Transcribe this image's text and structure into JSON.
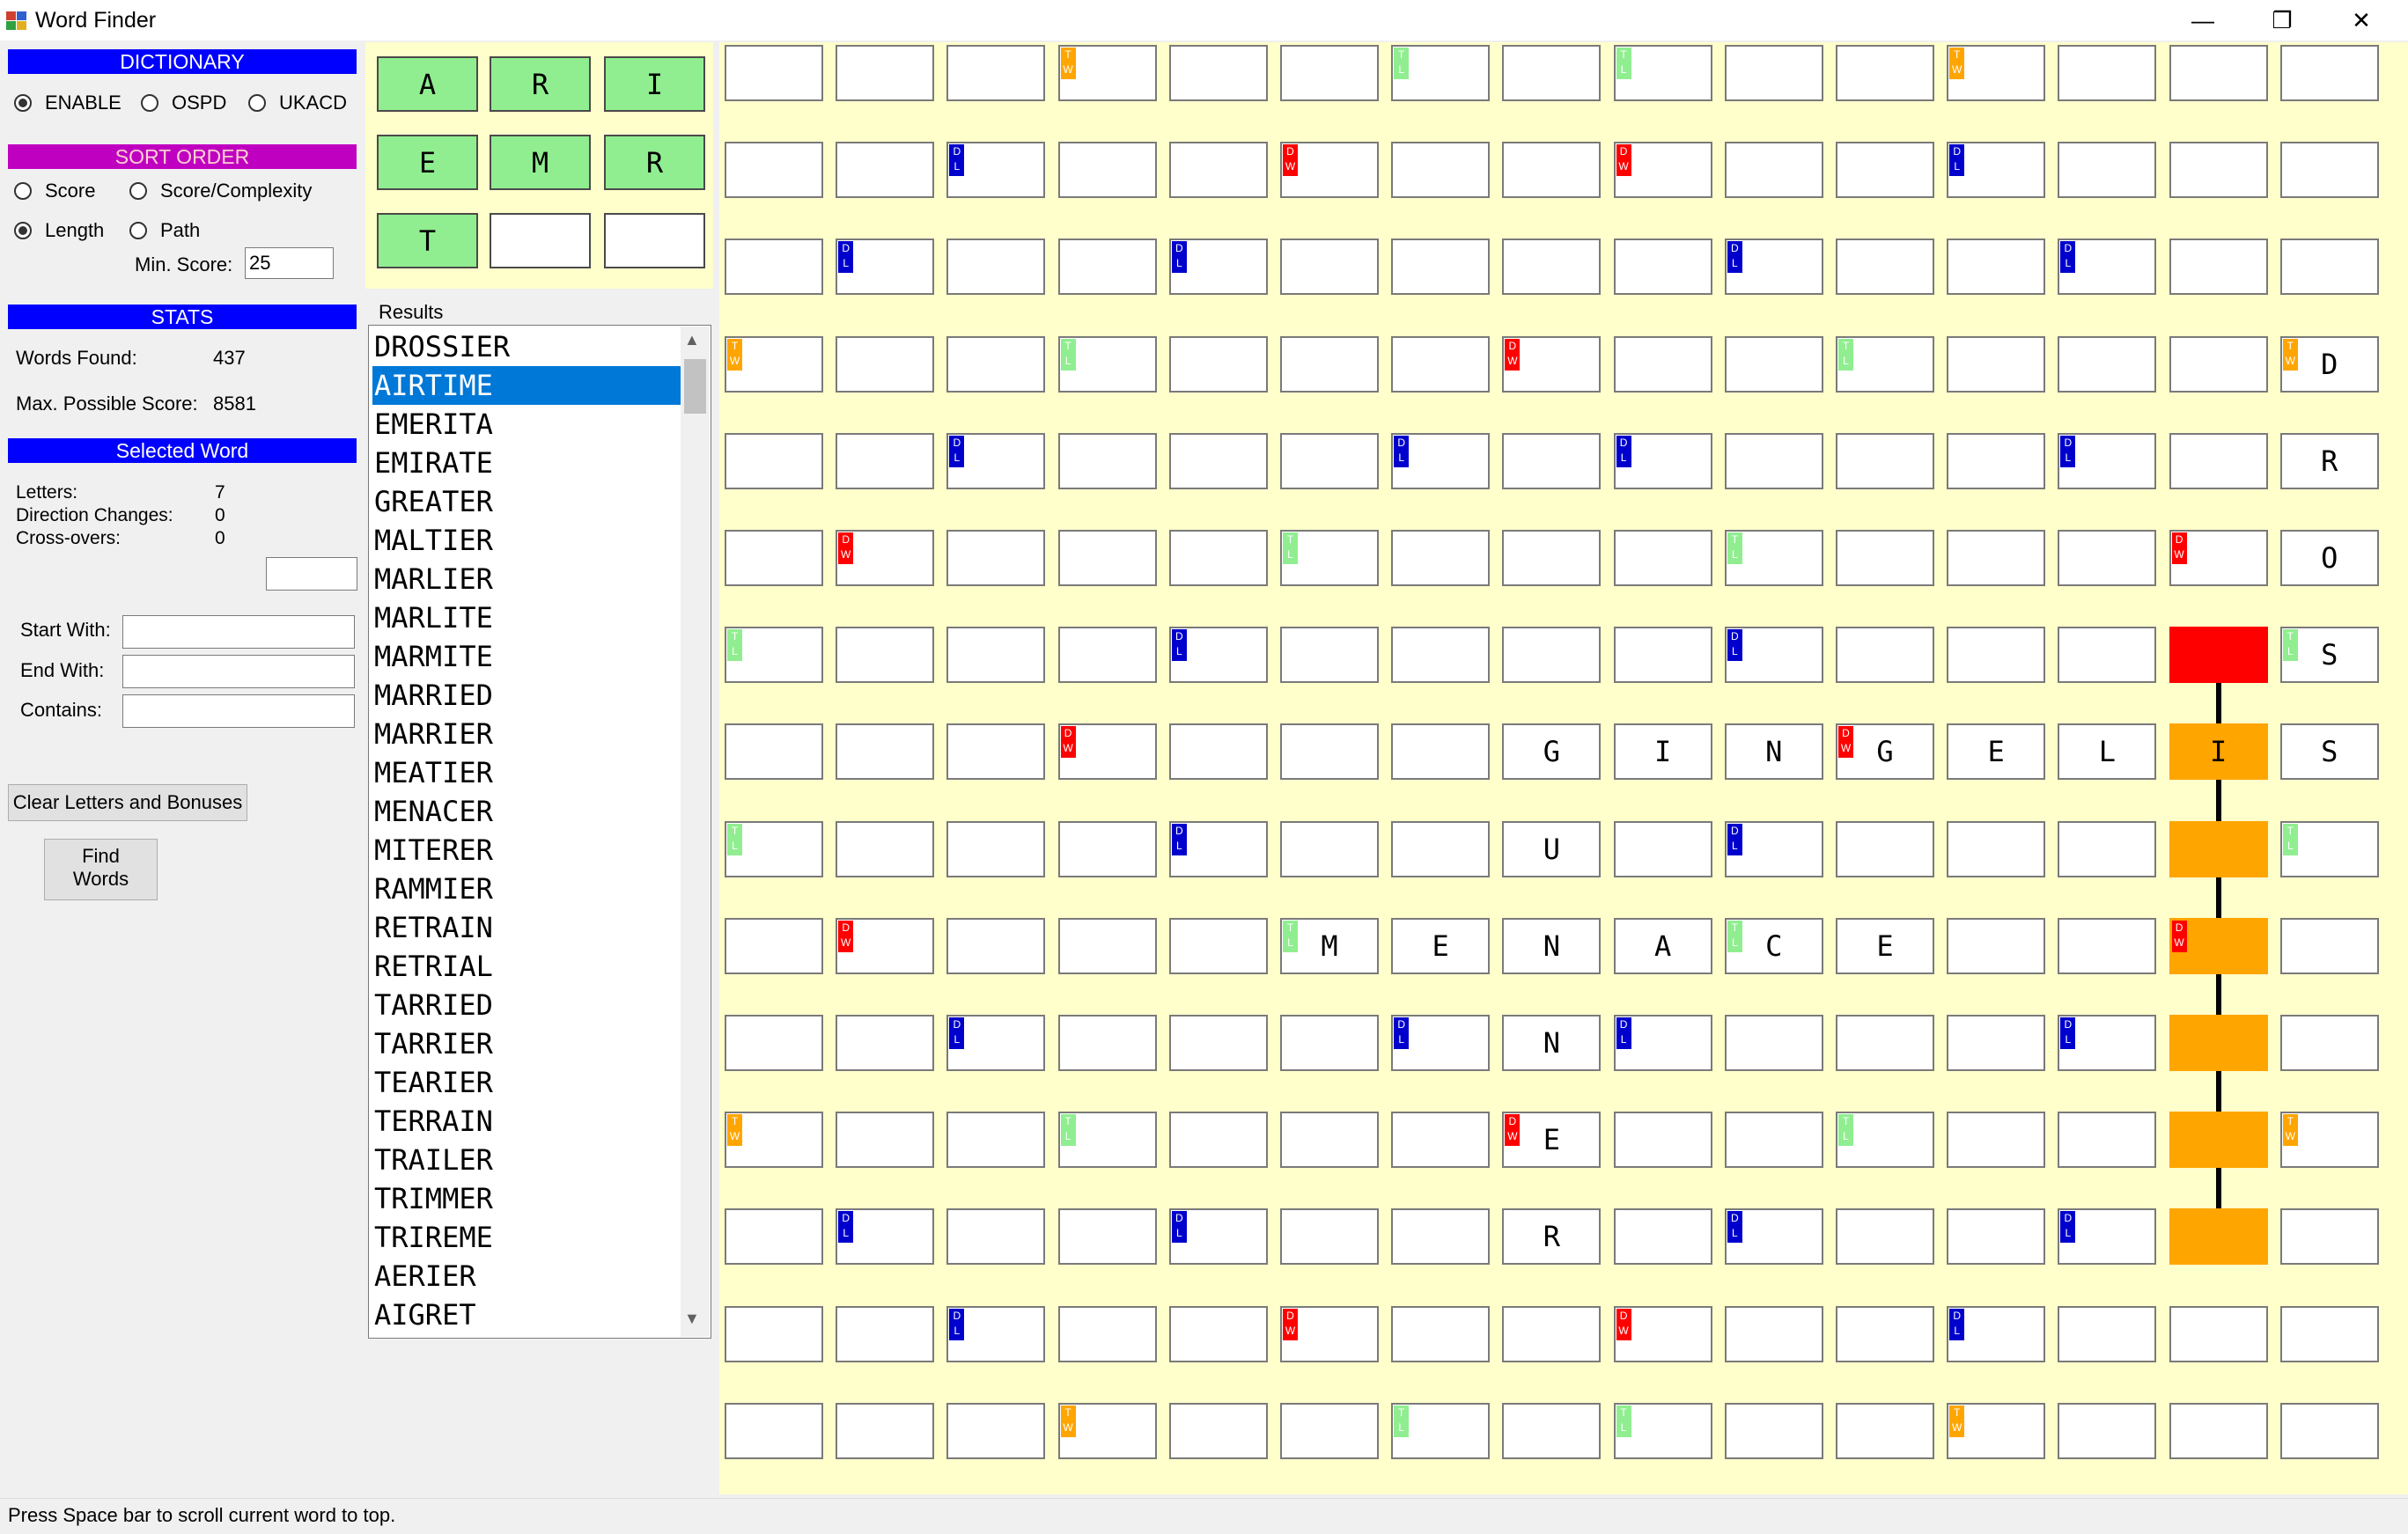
{
  "window": {
    "title": "Word Finder",
    "minimize": "—",
    "maximize": "❐",
    "close": "✕"
  },
  "dictionary": {
    "header": "DICTIONARY",
    "options": [
      "ENABLE",
      "OSPD",
      "UKACD"
    ],
    "selected": "ENABLE"
  },
  "sort_order": {
    "header": "SORT ORDER",
    "options": [
      "Score",
      "Score/Complexity",
      "Length",
      "Path"
    ],
    "selected": "Length",
    "min_score_label": "Min. Score:",
    "min_score_value": "25"
  },
  "stats": {
    "header": "STATS",
    "words_found_label": "Words Found:",
    "words_found": "437",
    "max_score_label": "Max. Possible Score:",
    "max_score": "8581"
  },
  "selected_word": {
    "header": "Selected Word",
    "letters_label": "Letters:",
    "letters": "7",
    "direction_label": "Direction Changes:",
    "direction": "0",
    "crossovers_label": "Cross-overs:",
    "crossovers": "0",
    "score_value": ""
  },
  "filters": {
    "start_label": "Start With:",
    "start_value": "",
    "end_label": "End With:",
    "end_value": "",
    "contains_label": "Contains:",
    "contains_value": ""
  },
  "buttons": {
    "clear": "Clear Letters and Bonuses",
    "find_line1": "Find",
    "find_line2": "Words"
  },
  "rack": [
    "A",
    "R",
    "I",
    "E",
    "M",
    "R",
    "T",
    "",
    ""
  ],
  "results": {
    "label": "Results",
    "selected_index": 1,
    "items": [
      "DROSSIER",
      "AIRTIME",
      "EMERITA",
      "EMIRATE",
      "GREATER",
      "MALTIER",
      "MARLIER",
      "MARLITE",
      "MARMITE",
      "MARRIED",
      "MARRIER",
      "MEATIER",
      "MENACER",
      "MITERER",
      "RAMMIER",
      "RETRAIN",
      "RETRIAL",
      "TARRIED",
      "TARRIER",
      "TEARIER",
      "TERRAIN",
      "TRAILER",
      "TRIMMER",
      "TRIREME",
      "AERIER",
      "AIGRET"
    ]
  },
  "board": {
    "bonuses": [
      [
        "",
        "",
        "",
        "TW",
        "",
        "",
        "TL",
        "",
        "TL",
        "",
        "",
        "TW",
        "",
        "",
        ""
      ],
      [
        "",
        "",
        "DL",
        "",
        "",
        "DW",
        "",
        "",
        "DW",
        "",
        "",
        "DL",
        "",
        "",
        ""
      ],
      [
        "",
        "DL",
        "",
        "",
        "DL",
        "",
        "",
        "",
        "",
        "DL",
        "",
        "",
        "DL",
        "",
        ""
      ],
      [
        "TW",
        "",
        "",
        "TL",
        "",
        "",
        "",
        "DW",
        "",
        "",
        "TL",
        "",
        "",
        "",
        "TW"
      ],
      [
        "",
        "",
        "DL",
        "",
        "",
        "",
        "DL",
        "",
        "DL",
        "",
        "",
        "",
        "DL",
        "",
        ""
      ],
      [
        "",
        "DW",
        "",
        "",
        "",
        "TL",
        "",
        "",
        "",
        "TL",
        "",
        "",
        "",
        "DW",
        ""
      ],
      [
        "TL",
        "",
        "",
        "",
        "DL",
        "",
        "",
        "",
        "",
        "DL",
        "",
        "",
        "",
        "",
        "TL"
      ],
      [
        "",
        "",
        "",
        "DW",
        "",
        "",
        "",
        "",
        "",
        "",
        "DW",
        "",
        "",
        "",
        ""
      ],
      [
        "TL",
        "",
        "",
        "",
        "DL",
        "",
        "",
        "",
        "",
        "DL",
        "",
        "",
        "",
        "",
        "TL"
      ],
      [
        "",
        "DW",
        "",
        "",
        "",
        "TL",
        "",
        "",
        "",
        "TL",
        "",
        "",
        "",
        "DW",
        ""
      ],
      [
        "",
        "",
        "DL",
        "",
        "",
        "",
        "DL",
        "",
        "DL",
        "",
        "",
        "",
        "DL",
        "",
        ""
      ],
      [
        "TW",
        "",
        "",
        "TL",
        "",
        "",
        "",
        "DW",
        "",
        "",
        "TL",
        "",
        "",
        "",
        "TW"
      ],
      [
        "",
        "DL",
        "",
        "",
        "DL",
        "",
        "",
        "",
        "",
        "DL",
        "",
        "",
        "DL",
        "",
        ""
      ],
      [
        "",
        "",
        "DL",
        "",
        "",
        "DW",
        "",
        "",
        "DW",
        "",
        "",
        "DL",
        "",
        "",
        ""
      ],
      [
        "",
        "",
        "",
        "TW",
        "",
        "",
        "TL",
        "",
        "TL",
        "",
        "",
        "TW",
        "",
        "",
        ""
      ]
    ],
    "letters": [
      [
        "",
        "",
        "",
        "",
        "",
        "",
        "",
        "",
        "",
        "",
        "",
        "",
        "",
        "",
        ""
      ],
      [
        "",
        "",
        "",
        "",
        "",
        "",
        "",
        "",
        "",
        "",
        "",
        "",
        "",
        "",
        ""
      ],
      [
        "",
        "",
        "",
        "",
        "",
        "",
        "",
        "",
        "",
        "",
        "",
        "",
        "",
        "",
        ""
      ],
      [
        "",
        "",
        "",
        "",
        "",
        "",
        "",
        "",
        "",
        "",
        "",
        "",
        "",
        "",
        "D"
      ],
      [
        "",
        "",
        "",
        "",
        "",
        "",
        "",
        "",
        "",
        "",
        "",
        "",
        "",
        "",
        "R"
      ],
      [
        "",
        "",
        "",
        "",
        "",
        "",
        "",
        "",
        "",
        "",
        "",
        "",
        "",
        "",
        "O"
      ],
      [
        "",
        "",
        "",
        "",
        "",
        "",
        "",
        "",
        "",
        "",
        "",
        "",
        "",
        "",
        "S"
      ],
      [
        "",
        "",
        "",
        "",
        "",
        "",
        "",
        "G",
        "I",
        "N",
        "G",
        "E",
        "L",
        "I",
        "S"
      ],
      [
        "",
        "",
        "",
        "",
        "",
        "",
        "",
        "U",
        "",
        "",
        "",
        "",
        "",
        "",
        ""
      ],
      [
        "",
        "",
        "",
        "",
        "",
        "M",
        "E",
        "N",
        "A",
        "C",
        "E",
        "",
        "",
        "",
        ""
      ],
      [
        "",
        "",
        "",
        "",
        "",
        "",
        "",
        "N",
        "",
        "",
        "",
        "",
        "",
        "",
        ""
      ],
      [
        "",
        "",
        "",
        "",
        "",
        "",
        "",
        "E",
        "",
        "",
        "",
        "",
        "",
        "",
        ""
      ],
      [
        "",
        "",
        "",
        "",
        "",
        "",
        "",
        "R",
        "",
        "",
        "",
        "",
        "",
        "",
        ""
      ],
      [
        "",
        "",
        "",
        "",
        "",
        "",
        "",
        "",
        "",
        "",
        "",
        "",
        "",
        "",
        ""
      ],
      [
        "",
        "",
        "",
        "",
        "",
        "",
        "",
        "",
        "",
        "",
        "",
        "",
        "",
        "",
        ""
      ]
    ],
    "path_column": 13,
    "path_start_row": 6,
    "path_end_row": 12
  },
  "status": "Press Space bar to scroll current word to top.",
  "colors": {
    "dictionary_header": "#0000ff",
    "sort_header": "#c000c0",
    "stats_header": "#0000ff",
    "selected_header": "#0000ff",
    "board_bg": "#ffffcc",
    "path": "#ffa500",
    "path_start": "#ff0000"
  }
}
